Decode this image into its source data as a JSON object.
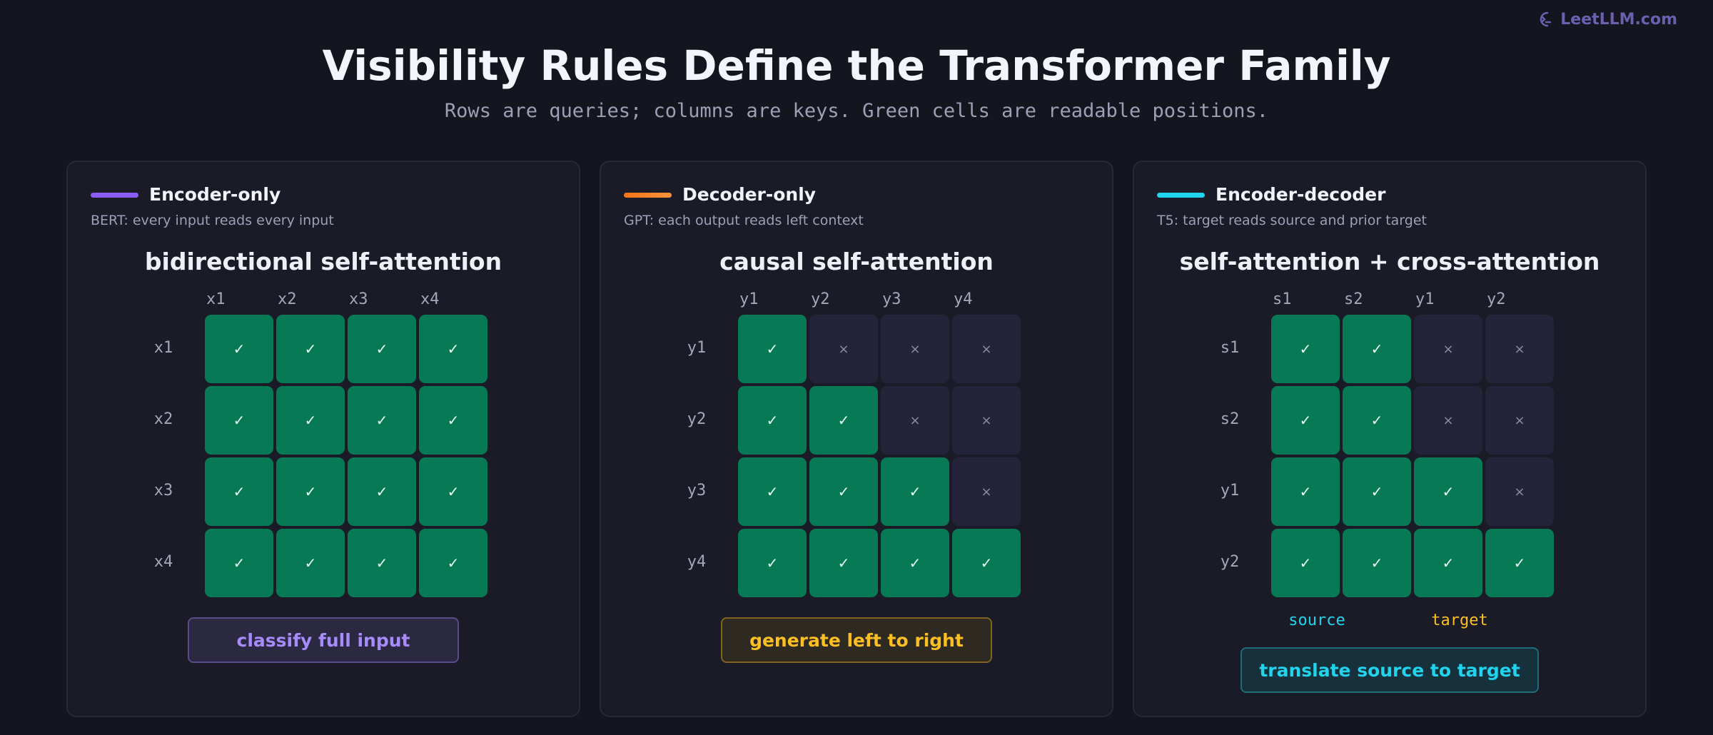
{
  "brand": "LeetLLM.com",
  "header": {
    "title": "Visibility Rules Define the Transformer Family",
    "subtitle": "Rows are queries; columns are keys. Green cells are readable positions."
  },
  "panels": [
    {
      "title": "Encoder-only",
      "subtitle": "BERT: every input reads every input",
      "heading": "bidirectional self-attention",
      "columns": [
        "x1",
        "x2",
        "x3",
        "x4"
      ],
      "rows": [
        "x1",
        "x2",
        "x3",
        "x4"
      ],
      "cells": [
        [
          "✓",
          "✓",
          "✓",
          "✓"
        ],
        [
          "✓",
          "✓",
          "✓",
          "✓"
        ],
        [
          "✓",
          "✓",
          "✓",
          "✓"
        ],
        [
          "✓",
          "✓",
          "✓",
          "✓"
        ]
      ],
      "button": "classify full input"
    },
    {
      "title": "Decoder-only",
      "subtitle": "GPT: each output reads left context",
      "heading": "causal self-attention",
      "columns": [
        "y1",
        "y2",
        "y3",
        "y4"
      ],
      "rows": [
        "y1",
        "y2",
        "y3",
        "y4"
      ],
      "cells": [
        [
          "✓",
          "×",
          "×",
          "×"
        ],
        [
          "✓",
          "✓",
          "×",
          "×"
        ],
        [
          "✓",
          "✓",
          "✓",
          "×"
        ],
        [
          "✓",
          "✓",
          "✓",
          "✓"
        ]
      ],
      "button": "generate left to right"
    },
    {
      "title": "Encoder-decoder",
      "subtitle": "T5: target reads source and prior target",
      "heading": "self-attention + cross-attention",
      "columns": [
        "s1",
        "s2",
        "y1",
        "y2"
      ],
      "rows": [
        "s1",
        "s2",
        "y1",
        "y2"
      ],
      "cells": [
        [
          "✓",
          "✓",
          "×",
          "×"
        ],
        [
          "✓",
          "✓",
          "×",
          "×"
        ],
        [
          "✓",
          "✓",
          "✓",
          "×"
        ],
        [
          "✓",
          "✓",
          "✓",
          "✓"
        ]
      ],
      "groups": [
        "source",
        "target"
      ],
      "button": "translate source to target"
    }
  ]
}
